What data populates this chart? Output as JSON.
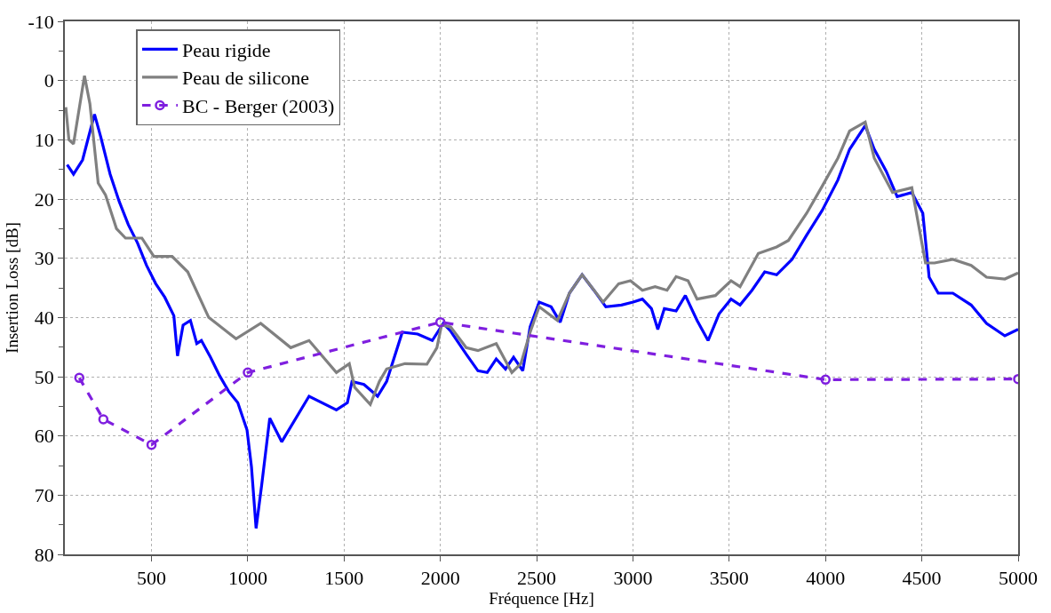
{
  "chart_data": {
    "type": "line",
    "xlabel": "Fréquence [Hz]",
    "ylabel": "Insertion Loss [dB]",
    "xlim": [
      50,
      5000
    ],
    "xticks": [
      500,
      1000,
      1500,
      2000,
      2500,
      3000,
      3500,
      4000,
      4500,
      5000
    ],
    "ylim": [
      80,
      -10
    ],
    "yticks": [
      -10,
      {
        "value": -5,
        "label": null
      },
      0,
      {
        "value": 5,
        "label": null
      },
      10,
      {
        "value": 15,
        "label": null
      },
      20,
      {
        "value": 25,
        "label": null
      },
      30,
      {
        "value": 35,
        "label": null
      },
      40,
      {
        "value": 45,
        "label": null
      },
      50,
      {
        "value": 55,
        "label": null
      },
      60,
      {
        "value": 65,
        "label": null
      },
      70,
      {
        "value": 75,
        "label": null
      },
      80
    ],
    "grid": true,
    "legend": "top left",
    "series": [
      {
        "name": "Peau rigide",
        "color": "#0000ff",
        "line_style": "solid",
        "marker": "none",
        "x": [
          62,
          95,
          142,
          166,
          204,
          237,
          285,
          332,
          379,
          427,
          474,
          522,
          569,
          616,
          635,
          664,
          702,
          735,
          759,
          806,
          853,
          901,
          948,
          996,
          1019,
          1043,
          1072,
          1114,
          1176,
          1318,
          1460,
          1517,
          1541,
          1603,
          1674,
          1721,
          1802,
          1882,
          1958,
          2015,
          2053,
          2134,
          2195,
          2243,
          2290,
          2338,
          2380,
          2428,
          2466,
          2513,
          2575,
          2622,
          2670,
          2736,
          2797,
          2859,
          2940,
          3001,
          3049,
          3096,
          3129,
          3163,
          3224,
          3272,
          3333,
          3390,
          3447,
          3509,
          3556,
          3618,
          3684,
          3746,
          3826,
          3902,
          3983,
          4064,
          4125,
          4206,
          4253,
          4315,
          4372,
          4448,
          4505,
          4538,
          4585,
          4661,
          4756,
          4836,
          4931,
          5000
        ],
        "values": [
          14.2,
          15.8,
          13.4,
          10.4,
          5.7,
          9.6,
          15.8,
          20.4,
          24.3,
          27.4,
          31.2,
          34.3,
          36.6,
          39.7,
          46.5,
          41.3,
          40.5,
          44.4,
          43.9,
          46.7,
          49.8,
          52.5,
          54.4,
          59,
          65.2,
          75.6,
          68.3,
          57,
          61,
          53.3,
          55.6,
          54.4,
          50.8,
          51.3,
          53.3,
          50.8,
          42.5,
          42.8,
          43.9,
          41,
          42.3,
          46.2,
          49,
          49.3,
          47,
          48.7,
          46.7,
          49,
          41.6,
          37.4,
          38.2,
          40.8,
          35.9,
          32.8,
          35.4,
          38.2,
          37.9,
          37.4,
          36.9,
          38.5,
          42,
          38.5,
          38.9,
          36.3,
          40.5,
          43.9,
          39.4,
          36.9,
          37.9,
          35.4,
          32.3,
          32.8,
          30.2,
          26.1,
          21.9,
          16.8,
          11.6,
          7.6,
          11.6,
          15.3,
          19.6,
          18.9,
          22.4,
          33.2,
          35.9,
          35.9,
          37.9,
          41,
          43.1,
          42
        ]
      },
      {
        "name": "Peau de silicone",
        "color": "#808080",
        "line_style": "solid",
        "marker": "none",
        "x": [
          55,
          71,
          95,
          152,
          180,
          223,
          261,
          318,
          365,
          450,
          512,
          607,
          688,
          797,
          939,
          1067,
          1223,
          1318,
          1460,
          1527,
          1555,
          1636,
          1683,
          1721,
          1816,
          1930,
          1982,
          2006,
          2053,
          2134,
          2195,
          2290,
          2371,
          2418,
          2466,
          2513,
          2608,
          2670,
          2736,
          2845,
          2926,
          2987,
          3049,
          3115,
          3177,
          3224,
          3286,
          3333,
          3428,
          3509,
          3556,
          3651,
          3746,
          3807,
          3902,
          3983,
          4064,
          4125,
          4206,
          4253,
          4348,
          4448,
          4519,
          4566,
          4661,
          4756,
          4836,
          4931,
          5000
        ],
        "values": [
          4.5,
          10,
          10.7,
          -0.8,
          3.9,
          17.3,
          19.3,
          25,
          26.6,
          26.6,
          29.7,
          29.7,
          32.3,
          40,
          43.6,
          41,
          45.1,
          43.9,
          49.3,
          47.8,
          51.8,
          54.7,
          50.8,
          48.7,
          47.8,
          47.9,
          45.1,
          41.3,
          41.6,
          45.1,
          45.6,
          44.4,
          49.3,
          47.8,
          42.5,
          38.2,
          40.5,
          35.9,
          32.8,
          37.4,
          34.3,
          33.8,
          35.4,
          34.8,
          35.4,
          33.1,
          33.8,
          36.9,
          36.3,
          33.8,
          34.8,
          29.2,
          28.1,
          27,
          22.4,
          17.8,
          13.1,
          8.5,
          7,
          13.1,
          18.9,
          18.1,
          30.8,
          30.8,
          30.2,
          31.2,
          33.2,
          33.5,
          32.5
        ]
      },
      {
        "name": "BC - Berger (2003)",
        "color": "#7f1fdf",
        "line_style": "dashed",
        "marker": "circle",
        "x": [
          125,
          250,
          500,
          1000,
          2000,
          4000,
          5000
        ],
        "values": [
          50.2,
          57.2,
          61.5,
          49.3,
          40.8,
          50.5,
          50.4
        ]
      }
    ]
  }
}
